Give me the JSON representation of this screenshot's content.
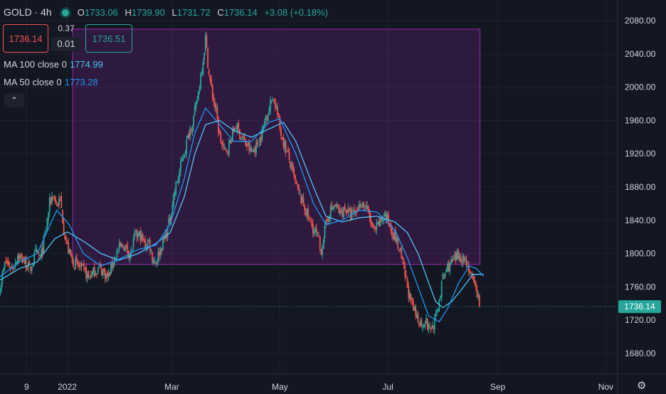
{
  "header": {
    "symbol": "GOLD · 4h",
    "open_label": "O",
    "open": "1733.06",
    "high_label": "H",
    "high": "1739.90",
    "low_label": "L",
    "low": "1731.72",
    "close_label": "C",
    "close": "1736.14",
    "change": "+3.08 (+0.18%)"
  },
  "trade": {
    "sell_price": "1736.14",
    "spread_top": "0.37",
    "spread_bottom": "0.01",
    "buy_price": "1736.51"
  },
  "indicators": [
    {
      "label": "MA 100 close 0",
      "value": "1774.99",
      "color": "#4fc3f7"
    },
    {
      "label": "MA 50 close 0",
      "value": "1773.28",
      "color": "#2196f3"
    }
  ],
  "controls": {
    "collapse_icon": "chevron-up-icon",
    "settings_icon": "gear-icon"
  },
  "chart_data": {
    "type": "candlestick",
    "symbol": "GOLD",
    "timeframe": "4h",
    "y_ticks": [
      1680,
      1720,
      1760,
      1800,
      1840,
      1880,
      1920,
      1960,
      2000,
      2040,
      2080
    ],
    "y_tick_labels": [
      "1680.00",
      "1720.00",
      "1760.00",
      "1800.00",
      "1840.00",
      "1880.00",
      "1920.00",
      "1960.00",
      "2000.00",
      "2040.00",
      "2080.00"
    ],
    "ylim": [
      1655,
      2105
    ],
    "x_ticks": [
      "2021-12-09",
      "2022-01-01",
      "2022-03-01",
      "2022-05-01",
      "2022-07-01",
      "2022-09-01",
      "2022-11-01"
    ],
    "x_tick_labels": [
      "9",
      "2022",
      "Mar",
      "May",
      "Jul",
      "Sep",
      "Nov"
    ],
    "xlim": [
      "2021-11-24",
      "2022-12-05"
    ],
    "last_price": 1736.14,
    "last_price_label": "1736.14",
    "rectangle": {
      "x_start": "2022-01-04",
      "x_end": "2022-08-22",
      "y_top": 2070,
      "y_bottom": 1787
    },
    "close_path": [
      [
        "2021-11-24",
        1760
      ],
      [
        "2021-11-27",
        1790
      ],
      [
        "2021-12-01",
        1782
      ],
      [
        "2021-12-04",
        1798
      ],
      [
        "2021-12-08",
        1790
      ],
      [
        "2021-12-11",
        1780
      ],
      [
        "2021-12-14",
        1800
      ],
      [
        "2021-12-17",
        1795
      ],
      [
        "2021-12-20",
        1830
      ],
      [
        "2021-12-22",
        1860
      ],
      [
        "2021-12-24",
        1872
      ],
      [
        "2021-12-26",
        1858
      ],
      [
        "2021-12-28",
        1865
      ],
      [
        "2021-12-30",
        1830
      ],
      [
        "2022-01-01",
        1808
      ],
      [
        "2022-01-04",
        1790
      ],
      [
        "2022-01-07",
        1785
      ],
      [
        "2022-01-10",
        1780
      ],
      [
        "2022-01-13",
        1772
      ],
      [
        "2022-01-16",
        1778
      ],
      [
        "2022-01-19",
        1783
      ],
      [
        "2022-01-22",
        1777
      ],
      [
        "2022-01-24",
        1770
      ],
      [
        "2022-01-27",
        1792
      ],
      [
        "2022-01-30",
        1805
      ],
      [
        "2022-02-02",
        1810
      ],
      [
        "2022-02-04",
        1803
      ],
      [
        "2022-02-06",
        1800
      ],
      [
        "2022-02-08",
        1820
      ],
      [
        "2022-02-11",
        1822
      ],
      [
        "2022-02-14",
        1810
      ],
      [
        "2022-02-16",
        1815
      ],
      [
        "2022-02-18",
        1795
      ],
      [
        "2022-02-20",
        1790
      ],
      [
        "2022-02-23",
        1808
      ],
      [
        "2022-02-26",
        1825
      ],
      [
        "2022-02-28",
        1842
      ],
      [
        "2022-03-02",
        1870
      ],
      [
        "2022-03-05",
        1895
      ],
      [
        "2022-03-07",
        1915
      ],
      [
        "2022-03-09",
        1930
      ],
      [
        "2022-03-11",
        1948
      ],
      [
        "2022-03-13",
        1960
      ],
      [
        "2022-03-15",
        1980
      ],
      [
        "2022-03-17",
        2010
      ],
      [
        "2022-03-19",
        2040
      ],
      [
        "2022-03-20",
        2060
      ],
      [
        "2022-03-22",
        2015
      ],
      [
        "2022-03-24",
        1990
      ],
      [
        "2022-03-26",
        1970
      ],
      [
        "2022-03-28",
        1940
      ],
      [
        "2022-03-31",
        1920
      ],
      [
        "2022-04-03",
        1935
      ],
      [
        "2022-04-06",
        1955
      ],
      [
        "2022-04-09",
        1942
      ],
      [
        "2022-04-12",
        1930
      ],
      [
        "2022-04-15",
        1922
      ],
      [
        "2022-04-18",
        1930
      ],
      [
        "2022-04-21",
        1945
      ],
      [
        "2022-04-23",
        1965
      ],
      [
        "2022-04-25",
        1975
      ],
      [
        "2022-04-27",
        1990
      ],
      [
        "2022-04-29",
        1975
      ],
      [
        "2022-05-01",
        1950
      ],
      [
        "2022-05-03",
        1935
      ],
      [
        "2022-05-06",
        1915
      ],
      [
        "2022-05-09",
        1890
      ],
      [
        "2022-05-12",
        1870
      ],
      [
        "2022-05-15",
        1855
      ],
      [
        "2022-05-18",
        1838
      ],
      [
        "2022-05-21",
        1825
      ],
      [
        "2022-05-23",
        1815
      ],
      [
        "2022-05-24",
        1800
      ],
      [
        "2022-05-26",
        1825
      ],
      [
        "2022-05-29",
        1850
      ],
      [
        "2022-06-01",
        1858
      ],
      [
        "2022-06-04",
        1848
      ],
      [
        "2022-06-07",
        1855
      ],
      [
        "2022-06-10",
        1845
      ],
      [
        "2022-06-13",
        1850
      ],
      [
        "2022-06-16",
        1862
      ],
      [
        "2022-06-19",
        1855
      ],
      [
        "2022-06-21",
        1840
      ],
      [
        "2022-06-23",
        1825
      ],
      [
        "2022-06-26",
        1835
      ],
      [
        "2022-06-29",
        1848
      ],
      [
        "2022-07-02",
        1835
      ],
      [
        "2022-07-05",
        1820
      ],
      [
        "2022-07-08",
        1800
      ],
      [
        "2022-07-10",
        1780
      ],
      [
        "2022-07-12",
        1760
      ],
      [
        "2022-07-14",
        1740
      ],
      [
        "2022-07-17",
        1725
      ],
      [
        "2022-07-20",
        1715
      ],
      [
        "2022-07-22",
        1720
      ],
      [
        "2022-07-24",
        1710
      ],
      [
        "2022-07-26",
        1712
      ],
      [
        "2022-07-28",
        1722
      ],
      [
        "2022-07-30",
        1745
      ],
      [
        "2022-08-01",
        1770
      ],
      [
        "2022-08-04",
        1785
      ],
      [
        "2022-08-07",
        1790
      ],
      [
        "2022-08-10",
        1798
      ],
      [
        "2022-08-12",
        1795
      ],
      [
        "2022-08-14",
        1792
      ],
      [
        "2022-08-16",
        1780
      ],
      [
        "2022-08-18",
        1765
      ],
      [
        "2022-08-20",
        1755
      ],
      [
        "2022-08-22",
        1738
      ]
    ],
    "series": [
      {
        "name": "MA 100 close 0",
        "color": "#4fc3f7",
        "points": [
          [
            "2021-11-24",
            1768
          ],
          [
            "2021-12-05",
            1782
          ],
          [
            "2021-12-15",
            1790
          ],
          [
            "2021-12-25",
            1818
          ],
          [
            "2022-01-01",
            1826
          ],
          [
            "2022-01-10",
            1815
          ],
          [
            "2022-01-20",
            1800
          ],
          [
            "2022-01-30",
            1792
          ],
          [
            "2022-02-10",
            1800
          ],
          [
            "2022-02-20",
            1812
          ],
          [
            "2022-02-28",
            1825
          ],
          [
            "2022-03-08",
            1868
          ],
          [
            "2022-03-14",
            1920
          ],
          [
            "2022-03-20",
            1955
          ],
          [
            "2022-03-28",
            1960
          ],
          [
            "2022-04-05",
            1948
          ],
          [
            "2022-04-15",
            1940
          ],
          [
            "2022-04-25",
            1950
          ],
          [
            "2022-05-03",
            1958
          ],
          [
            "2022-05-10",
            1935
          ],
          [
            "2022-05-20",
            1880
          ],
          [
            "2022-05-27",
            1845
          ],
          [
            "2022-06-05",
            1838
          ],
          [
            "2022-06-15",
            1843
          ],
          [
            "2022-06-25",
            1845
          ],
          [
            "2022-07-05",
            1838
          ],
          [
            "2022-07-12",
            1825
          ],
          [
            "2022-07-18",
            1800
          ],
          [
            "2022-07-24",
            1765
          ],
          [
            "2022-07-28",
            1742
          ],
          [
            "2022-08-01",
            1735
          ],
          [
            "2022-08-06",
            1742
          ],
          [
            "2022-08-12",
            1758
          ],
          [
            "2022-08-18",
            1775
          ],
          [
            "2022-08-24",
            1775
          ]
        ]
      },
      {
        "name": "MA 50 close 0",
        "color": "#2196f3",
        "points": [
          [
            "2021-11-24",
            1772
          ],
          [
            "2021-12-05",
            1790
          ],
          [
            "2021-12-15",
            1800
          ],
          [
            "2021-12-26",
            1852
          ],
          [
            "2022-01-02",
            1835
          ],
          [
            "2022-01-10",
            1800
          ],
          [
            "2022-01-20",
            1785
          ],
          [
            "2022-01-30",
            1793
          ],
          [
            "2022-02-10",
            1805
          ],
          [
            "2022-02-20",
            1810
          ],
          [
            "2022-02-28",
            1835
          ],
          [
            "2022-03-08",
            1890
          ],
          [
            "2022-03-14",
            1945
          ],
          [
            "2022-03-20",
            1975
          ],
          [
            "2022-03-28",
            1955
          ],
          [
            "2022-04-05",
            1935
          ],
          [
            "2022-04-15",
            1935
          ],
          [
            "2022-04-25",
            1958
          ],
          [
            "2022-05-01",
            1962
          ],
          [
            "2022-05-10",
            1920
          ],
          [
            "2022-05-20",
            1860
          ],
          [
            "2022-05-27",
            1835
          ],
          [
            "2022-06-05",
            1840
          ],
          [
            "2022-06-15",
            1852
          ],
          [
            "2022-06-25",
            1850
          ],
          [
            "2022-07-05",
            1828
          ],
          [
            "2022-07-12",
            1795
          ],
          [
            "2022-07-18",
            1760
          ],
          [
            "2022-07-24",
            1725
          ],
          [
            "2022-07-30",
            1718
          ],
          [
            "2022-08-04",
            1735
          ],
          [
            "2022-08-10",
            1765
          ],
          [
            "2022-08-16",
            1785
          ],
          [
            "2022-08-20",
            1782
          ],
          [
            "2022-08-24",
            1773
          ]
        ]
      }
    ],
    "colors": {
      "up": "#26a69a",
      "down": "#ef5350",
      "background": "#131722",
      "rectangle_fill": "rgba(155,39,176,0.2)",
      "rectangle_border": "#9c27b0"
    }
  }
}
